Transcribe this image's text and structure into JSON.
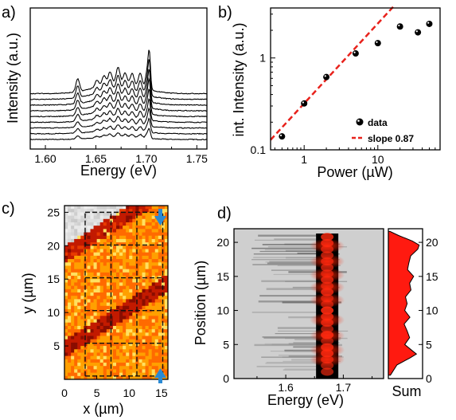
{
  "panels": {
    "a": {
      "letter": "a)",
      "xlabel": "Energy (eV)",
      "ylabel": "Intensity (a.u.)"
    },
    "b": {
      "letter": "b)",
      "xlabel": "Power (µW)",
      "ylabel": "int. Intensity (a.u.)"
    },
    "c": {
      "letter": "c)",
      "xlabel": "x (µm)",
      "ylabel": "y (µm)"
    },
    "d": {
      "letter": "d)",
      "xlabel": "Energy (eV)",
      "ylabel": "Position (µm)",
      "side_label": "Sum"
    }
  },
  "chart_data": [
    {
      "panel": "a",
      "type": "line",
      "xlabel": "Energy (eV)",
      "ylabel": "Intensity (a.u.)",
      "xlim": [
        1.585,
        1.76
      ],
      "xticks": [
        1.6,
        1.65,
        1.7,
        1.75
      ],
      "xtick_labels": [
        "1.60",
        "1.65",
        "1.70",
        "1.75"
      ],
      "y_ticks_labeled": false,
      "n_spectra": 9,
      "peak_energies_eV": [
        1.632,
        1.651,
        1.658,
        1.664,
        1.672,
        1.679,
        1.686,
        1.694,
        1.701,
        1.703
      ],
      "series_color": "#000000"
    },
    {
      "panel": "b",
      "type": "scatter",
      "xlabel": "Power (µW)",
      "ylabel": "int. Intensity (a.u.)",
      "xscale": "log",
      "yscale": "log",
      "xlim": [
        0.35,
        70
      ],
      "ylim": [
        0.1,
        3.5
      ],
      "xtick_labels": [
        "1",
        "10"
      ],
      "ytick_labels": [
        "0.1",
        "1"
      ],
      "series": [
        {
          "name": "data",
          "x": [
            0.5,
            1,
            2,
            5,
            10,
            20,
            35,
            50
          ],
          "y": [
            0.14,
            0.32,
            0.62,
            1.12,
            1.45,
            2.2,
            1.9,
            2.35
          ]
        }
      ],
      "fit": {
        "name": "slope 0.87",
        "slope": 0.87,
        "x": [
          0.35,
          17
        ],
        "color": "#e8221c"
      },
      "legend_position": "bottom-right"
    },
    {
      "panel": "c",
      "type": "heatmap",
      "xlabel": "x (µm)",
      "ylabel": "y (µm)",
      "xlim": [
        0,
        16
      ],
      "ylim": [
        0,
        26
      ],
      "xticks": [
        0,
        5,
        10,
        15
      ],
      "yticks": [
        5,
        10,
        15,
        20,
        25
      ],
      "colormap": [
        "#8a0d00",
        "#c21a00",
        "#e83a00",
        "#ff6a00",
        "#ffa000",
        "#ffe060"
      ],
      "arrow_color": "#2a8ad4",
      "arrow_x_um": 15,
      "grid_x_um": [
        3.2,
        7.2,
        11.2,
        15.2
      ],
      "grid_y_um": [
        0.5,
        5.4,
        10.3,
        15.2,
        20.1,
        25
      ]
    },
    {
      "panel": "d",
      "type": "heatmap",
      "xlabel": "Energy (eV)",
      "ylabel": "Position (µm)",
      "xlim": [
        1.51,
        1.77
      ],
      "ylim": [
        0,
        22
      ],
      "xticks": [
        1.6,
        1.7
      ],
      "yticks": [
        0,
        5,
        10,
        15,
        20
      ],
      "emission_center_eV": 1.672,
      "side_panel": {
        "label": "Sum",
        "yticks": [
          0,
          5,
          10,
          15,
          20
        ],
        "position": [
          0.5,
          2,
          3,
          3.6,
          4,
          5,
          6,
          7,
          8,
          9,
          10,
          11,
          12,
          13,
          14,
          15,
          16,
          17,
          18,
          19,
          19.6,
          20.2,
          21,
          21.6
        ],
        "sum": [
          0.06,
          0.25,
          0.62,
          0.82,
          0.72,
          0.48,
          0.62,
          0.55,
          0.46,
          0.63,
          0.48,
          0.55,
          0.5,
          0.66,
          0.62,
          0.74,
          0.56,
          0.6,
          0.65,
          0.86,
          0.9,
          0.7,
          0.3,
          0.05
        ],
        "fill_color": "#ff1a10"
      }
    }
  ]
}
